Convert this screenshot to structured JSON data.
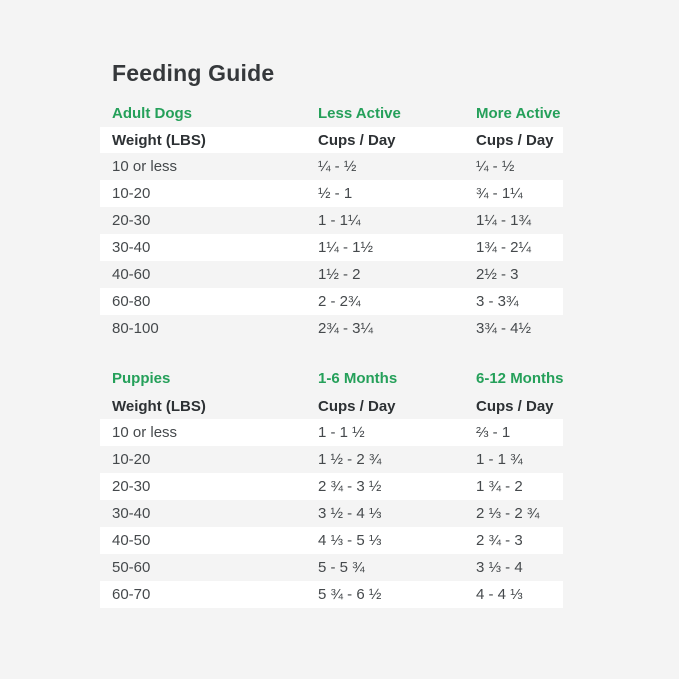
{
  "page": {
    "title": "Feeding Guide",
    "background_color": "#f4f4f4",
    "stripe_color": "#ffffff",
    "accent_green": "#25a05a",
    "text_dark": "#35383b"
  },
  "chart_data": [
    {
      "type": "table",
      "section_label": "Adult Dogs",
      "activity_headings": [
        "Less Active",
        "More Active"
      ],
      "header_row": [
        "Weight (LBS)",
        "Cups / Day",
        "Cups / Day"
      ],
      "rows": [
        [
          "10 or less",
          "¼ - ½",
          "¼ - ½"
        ],
        [
          "10-20",
          "½ - 1",
          "¾ - 1¼"
        ],
        [
          "20-30",
          "1 - 1¼",
          "1¼ - 1¾"
        ],
        [
          "30-40",
          "1¼ - 1½",
          "1¾ - 2¼"
        ],
        [
          "40-60",
          "1½ - 2",
          "2½ - 3"
        ],
        [
          "60-80",
          "2 - 2¾",
          "3 - 3¾"
        ],
        [
          "80-100",
          "2¾ - 3¼",
          "3¾ - 4½"
        ]
      ]
    },
    {
      "type": "table",
      "section_label": "Puppies",
      "activity_headings": [
        "1-6 Months",
        "6-12 Months"
      ],
      "header_row": [
        "Weight (LBS)",
        "Cups / Day",
        "Cups / Day"
      ],
      "rows": [
        [
          "10 or less",
          "1 - 1 ½",
          "⅔ - 1"
        ],
        [
          "10-20",
          "1 ½ - 2 ¾",
          "1 - 1 ¾"
        ],
        [
          "20-30",
          "2 ¾ - 3 ½",
          "1 ¾ - 2"
        ],
        [
          "30-40",
          "3 ½ - 4 ⅓",
          "2 ⅓ - 2 ¾"
        ],
        [
          "40-50",
          "4 ⅓ - 5 ⅓",
          "2 ¾ - 3"
        ],
        [
          "50-60",
          "5 - 5 ¾",
          "3 ⅓ - 4"
        ],
        [
          "60-70",
          "5 ¾ - 6 ½",
          "4 - 4 ⅓"
        ]
      ]
    }
  ]
}
